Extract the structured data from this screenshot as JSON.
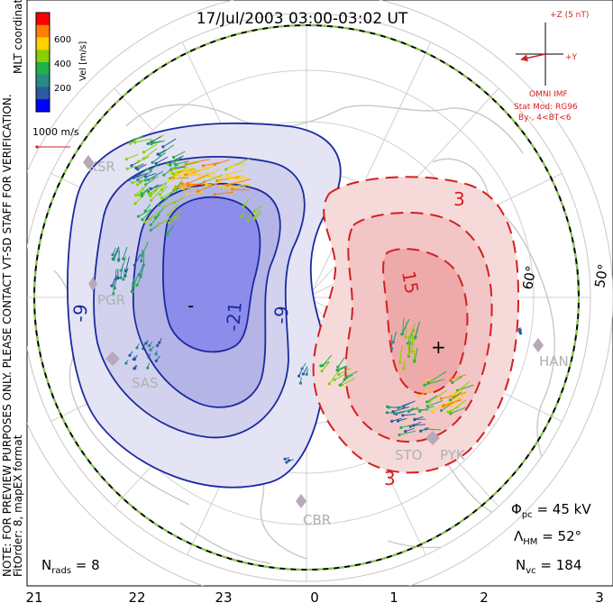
{
  "title": "17/Jul/2003 03:00-03:02 UT",
  "colorbar": {
    "label": "Vel [m/s]",
    "ticks": [
      "600",
      "400",
      "200"
    ],
    "colors": [
      "#ff0000",
      "#ff7f00",
      "#ffd000",
      "#88d000",
      "#22b04a",
      "#2a8a8a",
      "#2a5aa0",
      "#0000ff"
    ]
  },
  "side_note": {
    "line1": "NOTE: FOR PREVIEW PURPOSES ONLY. PLEASE CONTACT VT-SD STAFF FOR VERIFICATION.",
    "line2": "MLT coordinates",
    "line3": "FitOrder: 8, mapEX format"
  },
  "velocity_scale": "1000 m/s",
  "imf_box": {
    "top": "+Z (5 nT)",
    "right": "+Y",
    "source": "OMNI IMF",
    "model_line1": "Stat Mod: RG96",
    "model_line2": "By-, 4<BT<6"
  },
  "contours": {
    "negative": [
      "-9",
      "-9",
      "-21",
      "-"
    ],
    "positive": [
      "3",
      "3",
      "15",
      "+"
    ]
  },
  "latitude_labels": [
    "60°",
    "50°"
  ],
  "stations": [
    "KSR",
    "PGR",
    "SAS",
    "HAN",
    "STO",
    "PYK",
    "CBR"
  ],
  "stats": {
    "phi_symbol": "Φ",
    "phi_sub": "pc",
    "phi_value": " = 45 kV",
    "lambda_symbol": "Λ",
    "lambda_sub": "HM",
    "lambda_value": " = 52°",
    "nvc_symbol": "N",
    "nvc_sub": "vc",
    "nvc_value": " = 184",
    "nrads_symbol": "N",
    "nrads_sub": "rads",
    "nrads_value": " = 8"
  },
  "mlt_axis": [
    "21",
    "22",
    "23",
    "0",
    "1",
    "2",
    "3"
  ],
  "colors": {
    "negative_line": "#1a2aa0",
    "positive_line": "#d42020",
    "boundary": "#88cc44"
  }
}
